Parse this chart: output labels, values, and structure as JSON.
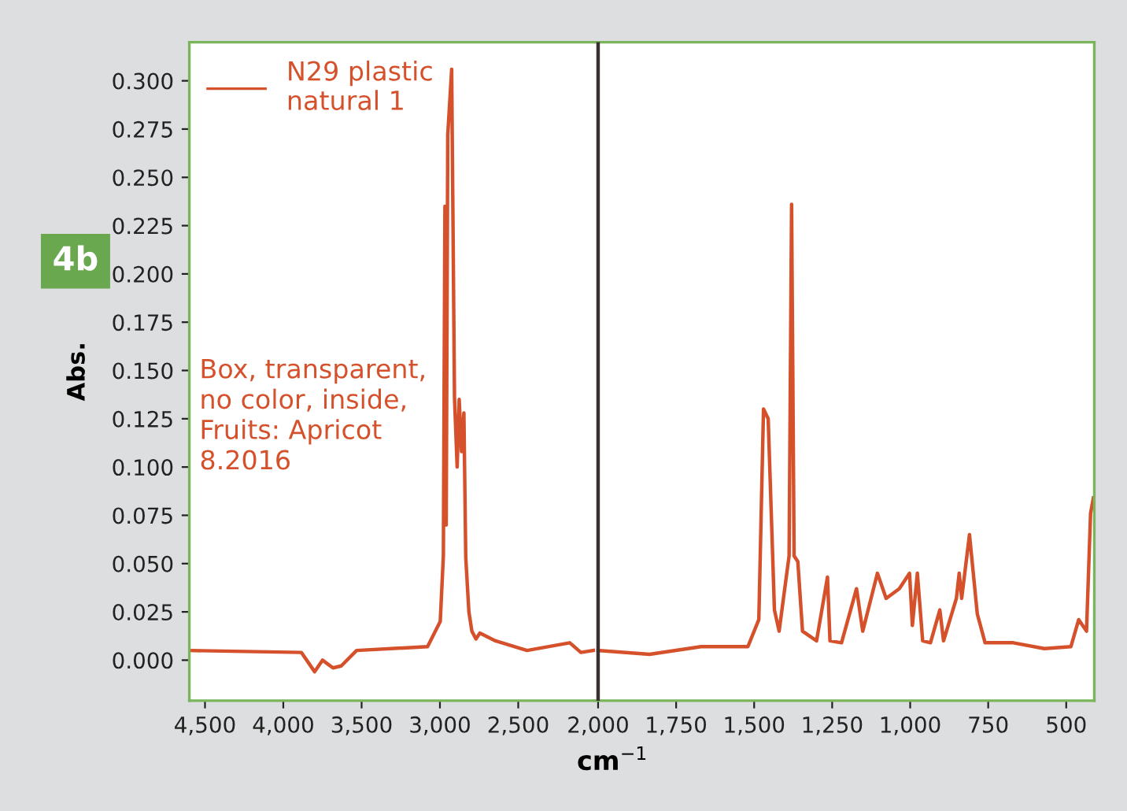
{
  "chart_data": [
    {
      "type": "line",
      "ylabel": "Abs.",
      "annotations": [
        "4b",
        "Box, transparent,\nno color, inside,\nFruits: Apricot\n8.2016"
      ],
      "legend": "top left",
      "grid": false,
      "marker": "none",
      "line_style": "solid",
      "xlim": [
        4600,
        2010
      ],
      "ylim": [
        -0.021,
        0.32
      ],
      "xticks": [
        {
          "value": 4500,
          "label": "4,500"
        },
        {
          "value": 4000,
          "label": "4,000"
        },
        {
          "value": 3500,
          "label": "3,500"
        },
        {
          "value": 3000,
          "label": "3,000"
        },
        {
          "value": 2500,
          "label": "2,500"
        }
      ],
      "yticks": [
        {
          "value": 0,
          "label": "0.000"
        },
        {
          "value": 0.025,
          "label": "0.025"
        },
        {
          "value": 0.05,
          "label": "0.050"
        },
        {
          "value": 0.075,
          "label": "0.075"
        },
        {
          "value": 0.1,
          "label": "0.100"
        },
        {
          "value": 0.125,
          "label": "0.125"
        },
        {
          "value": 0.15,
          "label": "0.150"
        },
        {
          "value": 0.175,
          "label": "0.175"
        },
        {
          "value": 0.2,
          "label": "0.200"
        },
        {
          "value": 0.225,
          "label": "0.225"
        },
        {
          "value": 0.25,
          "label": "0.250"
        },
        {
          "value": 0.275,
          "label": "0.275"
        },
        {
          "value": 0.3,
          "label": "0.300"
        }
      ],
      "series": [
        {
          "name": "N29 plastic\nnatural 1",
          "color": "#d5512b",
          "x": [
            4600,
            3885,
            3800,
            3750,
            3683,
            3630,
            3532,
            3079,
            2998,
            2978,
            2968,
            2960,
            2950,
            2925,
            2907,
            2890,
            2877,
            2862,
            2847,
            2835,
            2815,
            2796,
            2770,
            2745,
            2645,
            2444,
            2171,
            2100,
            2020
          ],
          "values": [
            0.005,
            0.004,
            -0.006,
            0.0,
            -0.004,
            -0.003,
            0.005,
            0.007,
            0.02,
            0.054,
            0.235,
            0.07,
            0.272,
            0.306,
            0.136,
            0.1,
            0.135,
            0.108,
            0.128,
            0.053,
            0.025,
            0.015,
            0.011,
            0.014,
            0.01,
            0.005,
            0.009,
            0.004,
            0.005
          ]
        }
      ]
    },
    {
      "type": "line",
      "xlabel": "cm$^{−1}$",
      "tick_labels": "x",
      "marker": "none",
      "line_style": "solid",
      "grid": false,
      "xlim": [
        2010,
        410
      ],
      "ylim": [
        -0.021,
        0.32
      ],
      "xticks": [
        {
          "value": 2000,
          "label": "2,000"
        },
        {
          "value": 1750,
          "label": "1,750"
        },
        {
          "value": 1500,
          "label": "1,500"
        },
        {
          "value": 1250,
          "label": "1,250"
        },
        {
          "value": 1000,
          "label": "1,000"
        },
        750,
        500
      ],
      "ref_lines": [
        {
          "axis": "x",
          "value": 2000,
          "color": "#3a3030"
        }
      ],
      "series": [
        {
          "color": "#d5512b",
          "x": [
            2000,
            1835,
            1670,
            1520,
            1485,
            1470,
            1455,
            1435,
            1420,
            1388,
            1380,
            1372,
            1360,
            1345,
            1300,
            1265,
            1257,
            1220,
            1172,
            1152,
            1105,
            1077,
            1035,
            1002,
            993,
            977,
            960,
            935,
            905,
            893,
            852,
            843,
            835,
            810,
            785,
            760,
            670,
            570,
            485,
            460,
            435,
            422,
            413
          ],
          "values": [
            0.005,
            0.003,
            0.007,
            0.007,
            0.021,
            0.13,
            0.125,
            0.026,
            0.015,
            0.054,
            0.236,
            0.054,
            0.051,
            0.015,
            0.01,
            0.043,
            0.01,
            0.009,
            0.037,
            0.015,
            0.045,
            0.032,
            0.037,
            0.045,
            0.018,
            0.045,
            0.01,
            0.009,
            0.026,
            0.01,
            0.032,
            0.045,
            0.032,
            0.065,
            0.024,
            0.009,
            0.009,
            0.006,
            0.007,
            0.021,
            0.015,
            0.076,
            0.084
          ]
        }
      ]
    }
  ]
}
